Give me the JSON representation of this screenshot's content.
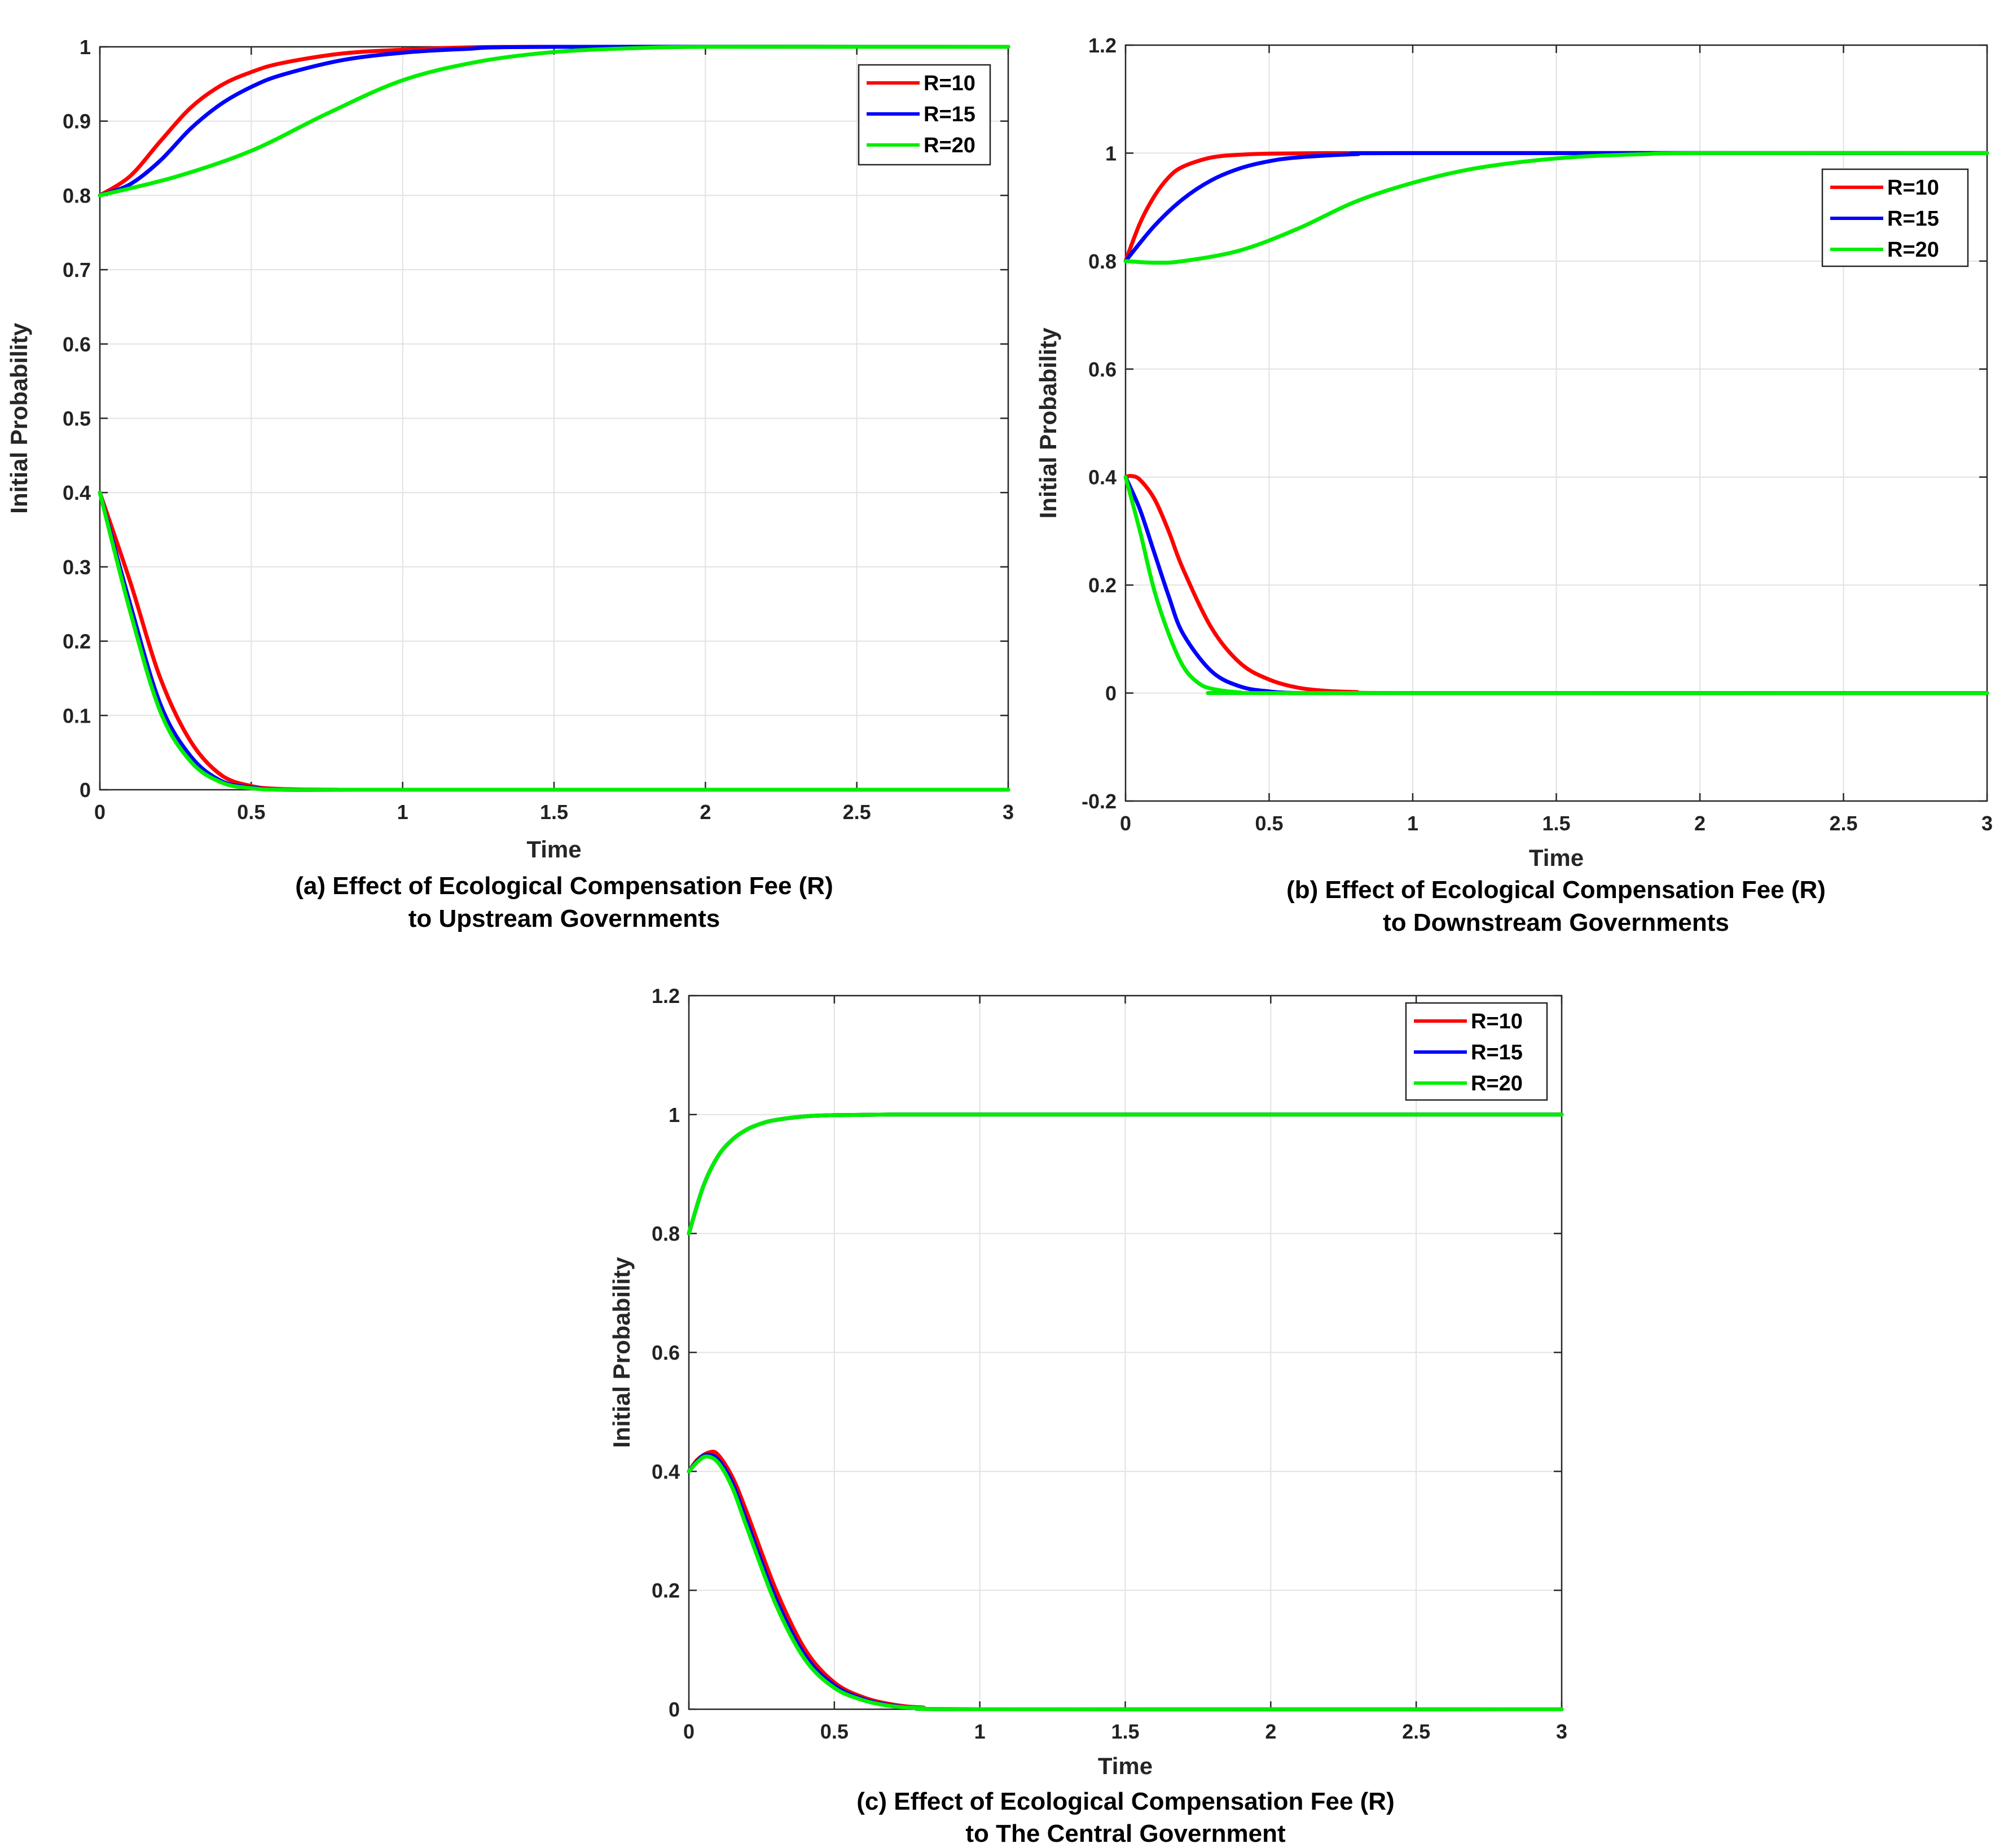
{
  "chart_data": [
    {
      "type": "line",
      "title": "",
      "xlabel": "Time",
      "ylabel": "Initial Probability",
      "xlim": [
        0,
        3
      ],
      "ylim": [
        0,
        1
      ],
      "xticks": [
        "0",
        "0.5",
        "1",
        "1.5",
        "2",
        "2.5",
        "3"
      ],
      "yticks": [
        "0",
        "0.1",
        "0.2",
        "0.3",
        "0.4",
        "0.5",
        "0.6",
        "0.7",
        "0.8",
        "0.9",
        "1"
      ],
      "grid": true,
      "legend_position": "top-right",
      "caption_line1": "(a) Effect of Ecological Compensation Fee (R)",
      "caption_line2": "to Upstream Governments",
      "series": [
        {
          "name": "R=10",
          "color": "#ff0000",
          "upper": {
            "x": [
              0,
              0.1,
              0.2,
              0.3,
              0.4,
              0.5,
              0.6,
              0.8,
              1.0,
              1.2,
              1.5,
              3
            ],
            "y": [
              0.8,
              0.826,
              0.873,
              0.918,
              0.948,
              0.966,
              0.978,
              0.991,
              0.996,
              0.999,
              1.0,
              1.0
            ]
          },
          "lower": {
            "x": [
              0,
              0.1,
              0.2,
              0.3,
              0.4,
              0.5,
              0.6,
              0.8,
              1.0,
              3
            ],
            "y": [
              0.4,
              0.28,
              0.15,
              0.065,
              0.02,
              0.005,
              0.001,
              0.0,
              0.0,
              0.0
            ]
          }
        },
        {
          "name": "R=15",
          "color": "#0000ff",
          "upper": {
            "x": [
              0,
              0.1,
              0.2,
              0.3,
              0.4,
              0.5,
              0.6,
              0.8,
              1.0,
              1.2,
              1.5,
              3
            ],
            "y": [
              0.8,
              0.815,
              0.847,
              0.89,
              0.923,
              0.946,
              0.962,
              0.982,
              0.992,
              0.997,
              1.0,
              1.0
            ]
          },
          "lower": {
            "x": [
              0,
              0.1,
              0.2,
              0.3,
              0.4,
              0.5,
              0.6,
              0.8,
              1.0,
              3
            ],
            "y": [
              0.4,
              0.25,
              0.115,
              0.045,
              0.012,
              0.003,
              0.0,
              0.0,
              0.0,
              0.0
            ]
          }
        },
        {
          "name": "R=20",
          "color": "#00ee00",
          "upper": {
            "x": [
              0,
              0.25,
              0.5,
              0.75,
              1.0,
              1.25,
              1.5,
              1.75,
              2.0,
              2.5,
              3
            ],
            "y": [
              0.8,
              0.825,
              0.86,
              0.91,
              0.955,
              0.98,
              0.993,
              0.998,
              1.0,
              1.0,
              1.0
            ]
          },
          "lower": {
            "x": [
              0,
              0.1,
              0.2,
              0.3,
              0.4,
              0.5,
              0.6,
              0.8,
              1.0,
              3
            ],
            "y": [
              0.4,
              0.24,
              0.105,
              0.038,
              0.01,
              0.002,
              0.0,
              0.0,
              0.0,
              0.0
            ]
          }
        }
      ]
    },
    {
      "type": "line",
      "title": "",
      "xlabel": "Time",
      "ylabel": "Initial Probability",
      "xlim": [
        0,
        3
      ],
      "ylim": [
        -0.2,
        1.2
      ],
      "xticks": [
        "0",
        "0.5",
        "1",
        "1.5",
        "2",
        "2.5",
        "3"
      ],
      "yticks": [
        "-0.2",
        "0",
        "0.2",
        "0.4",
        "0.6",
        "0.8",
        "1",
        "1.2"
      ],
      "grid": true,
      "legend_position": "top-right",
      "caption_line1": "(b) Effect of Ecological Compensation Fee (R)",
      "caption_line2": "to Downstream Governments",
      "series": [
        {
          "name": "R=10",
          "color": "#ff0000",
          "upper": {
            "x": [
              0,
              0.05,
              0.1,
              0.15,
              0.2,
              0.3,
              0.4,
              0.5,
              0.7,
              1.0,
              3
            ],
            "y": [
              0.8,
              0.87,
              0.92,
              0.955,
              0.975,
              0.992,
              0.997,
              0.999,
              1.0,
              1.0,
              1.0
            ]
          },
          "lower": {
            "x": [
              0,
              0.02,
              0.05,
              0.1,
              0.15,
              0.2,
              0.3,
              0.4,
              0.5,
              0.6,
              0.7,
              0.8,
              1.0,
              3
            ],
            "y": [
              0.4,
              0.402,
              0.395,
              0.36,
              0.3,
              0.23,
              0.12,
              0.055,
              0.025,
              0.01,
              0.004,
              0.002,
              0.0,
              0.0
            ]
          }
        },
        {
          "name": "R=15",
          "color": "#0000ff",
          "upper": {
            "x": [
              0,
              0.1,
              0.2,
              0.3,
              0.4,
              0.5,
              0.6,
              0.8,
              1.0,
              3
            ],
            "y": [
              0.8,
              0.865,
              0.915,
              0.95,
              0.972,
              0.985,
              0.992,
              0.998,
              1.0,
              1.0
            ]
          },
          "lower": {
            "x": [
              0,
              0.05,
              0.1,
              0.15,
              0.2,
              0.3,
              0.4,
              0.5,
              0.6,
              0.8,
              3
            ],
            "y": [
              0.4,
              0.34,
              0.26,
              0.18,
              0.11,
              0.04,
              0.012,
              0.003,
              0.0,
              0.0,
              0.0
            ]
          }
        },
        {
          "name": "R=20",
          "color": "#00ee00",
          "upper": {
            "x": [
              0,
              0.1,
              0.2,
              0.4,
              0.6,
              0.8,
              1.0,
              1.2,
              1.4,
              1.6,
              1.8,
              2.0,
              3
            ],
            "y": [
              0.8,
              0.797,
              0.8,
              0.82,
              0.86,
              0.91,
              0.945,
              0.97,
              0.985,
              0.994,
              0.998,
              1.0,
              1.0
            ]
          },
          "lower": {
            "x": [
              0,
              0.05,
              0.1,
              0.15,
              0.2,
              0.25,
              0.3,
              0.4,
              0.5,
              3
            ],
            "y": [
              0.4,
              0.3,
              0.19,
              0.11,
              0.05,
              0.02,
              0.008,
              0.001,
              0.0,
              0.0
            ]
          }
        }
      ]
    },
    {
      "type": "line",
      "title": "",
      "xlabel": "Time",
      "ylabel": "Initial Probability",
      "xlim": [
        0,
        3
      ],
      "ylim": [
        0,
        1.2
      ],
      "xticks": [
        "0",
        "0.5",
        "1",
        "1.5",
        "2",
        "2.5",
        "3"
      ],
      "yticks": [
        "0",
        "0.2",
        "0.4",
        "0.6",
        "0.8",
        "1",
        "1.2"
      ],
      "grid": true,
      "legend_position": "top-right",
      "caption_line1": "(c) Effect of Ecological Compensation Fee (R)",
      "caption_line2": "to The Central Government",
      "series": [
        {
          "name": "R=10",
          "color": "#ff0000",
          "upper": {
            "x": [
              0,
              0.05,
              0.1,
              0.15,
              0.2,
              0.25,
              0.3,
              0.4,
              0.5,
              0.7,
              1.0,
              3
            ],
            "y": [
              0.8,
              0.88,
              0.93,
              0.958,
              0.975,
              0.985,
              0.991,
              0.997,
              0.999,
              1.0,
              1.0,
              1.0
            ]
          },
          "lower": {
            "x": [
              0,
              0.03,
              0.07,
              0.1,
              0.15,
              0.2,
              0.3,
              0.4,
              0.5,
              0.6,
              0.7,
              0.8,
              1.0,
              3
            ],
            "y": [
              0.4,
              0.42,
              0.432,
              0.428,
              0.39,
              0.33,
              0.2,
              0.1,
              0.045,
              0.02,
              0.008,
              0.003,
              0.0,
              0.0
            ]
          }
        },
        {
          "name": "R=15",
          "color": "#0000ff",
          "upper": {
            "x": [
              0,
              0.05,
              0.1,
              0.15,
              0.2,
              0.25,
              0.3,
              0.4,
              0.5,
              0.7,
              1.0,
              3
            ],
            "y": [
              0.8,
              0.88,
              0.93,
              0.958,
              0.975,
              0.985,
              0.991,
              0.997,
              0.999,
              1.0,
              1.0,
              1.0
            ]
          },
          "lower": {
            "x": [
              0,
              0.03,
              0.06,
              0.1,
              0.15,
              0.2,
              0.3,
              0.4,
              0.5,
              0.6,
              0.7,
              0.8,
              1.0,
              3
            ],
            "y": [
              0.4,
              0.418,
              0.428,
              0.42,
              0.38,
              0.315,
              0.185,
              0.09,
              0.04,
              0.017,
              0.006,
              0.002,
              0.0,
              0.0
            ]
          }
        },
        {
          "name": "R=20",
          "color": "#00ee00",
          "upper": {
            "x": [
              0,
              0.05,
              0.1,
              0.15,
              0.2,
              0.25,
              0.3,
              0.4,
              0.5,
              0.7,
              1.0,
              3
            ],
            "y": [
              0.8,
              0.88,
              0.93,
              0.958,
              0.975,
              0.985,
              0.991,
              0.997,
              0.999,
              1.0,
              1.0,
              1.0
            ]
          },
          "lower": {
            "x": [
              0,
              0.03,
              0.06,
              0.1,
              0.15,
              0.2,
              0.3,
              0.4,
              0.5,
              0.6,
              0.7,
              0.8,
              1.0,
              3
            ],
            "y": [
              0.4,
              0.416,
              0.425,
              0.415,
              0.372,
              0.305,
              0.175,
              0.083,
              0.036,
              0.015,
              0.005,
              0.002,
              0.0,
              0.0
            ]
          }
        }
      ]
    }
  ]
}
